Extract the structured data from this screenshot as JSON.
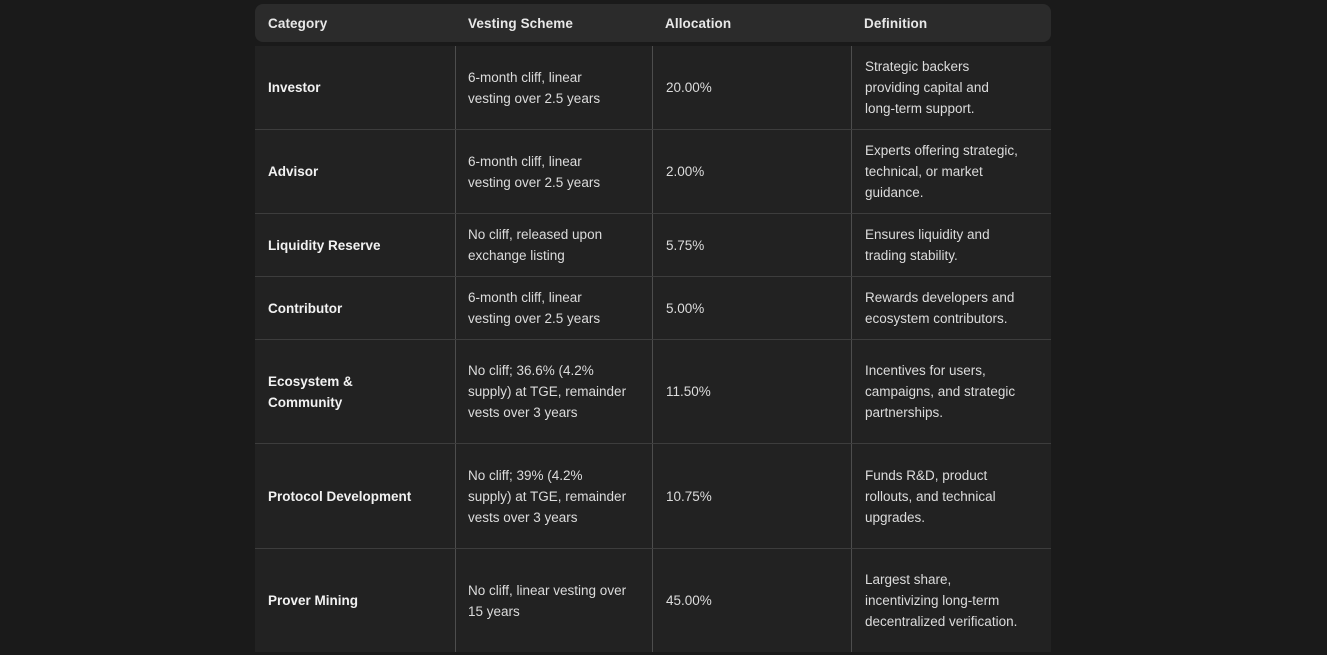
{
  "colors": {
    "page_background": "#1a1a1a",
    "header_background": "#2b2b2b",
    "body_background": "#222222",
    "row_separator": "#3d3d3d",
    "column_divider": "#4d4d4d",
    "header_text": "#e8e8e8",
    "category_text": "#f2f2f2",
    "cell_text": "#dcdcdc"
  },
  "table": {
    "columns": [
      {
        "label": "Category"
      },
      {
        "label": "Vesting Scheme"
      },
      {
        "label": "Allocation"
      },
      {
        "label": "Definition"
      }
    ],
    "rows": [
      {
        "category": "Investor",
        "vesting": "6-month cliff, linear vesting over 2.5 years",
        "allocation": "20.00%",
        "definition": "Strategic backers providing capital and long-term support."
      },
      {
        "category": "Advisor",
        "vesting": "6-month cliff, linear vesting over 2.5 years",
        "allocation": "2.00%",
        "definition": "Experts offering strategic, technical, or market guidance."
      },
      {
        "category": "Liquidity Reserve",
        "vesting": "No cliff, released upon exchange listing",
        "allocation": "5.75%",
        "definition": "Ensures liquidity and trading stability."
      },
      {
        "category": "Contributor",
        "vesting": "6-month cliff, linear vesting over 2.5 years",
        "allocation": "5.00%",
        "definition": "Rewards developers and ecosystem contributors."
      },
      {
        "category": "Ecosystem & Community",
        "vesting": "No cliff; 36.6% (4.2% supply) at TGE, remainder vests over 3 years",
        "allocation": "11.50%",
        "definition": "Incentives for users, campaigns, and strategic partnerships."
      },
      {
        "category": "Protocol Development",
        "vesting": "No cliff; 39% (4.2% supply) at TGE, remainder vests over 3 years",
        "allocation": "10.75%",
        "definition": "Funds R&D, product rollouts, and technical upgrades."
      },
      {
        "category": "Prover Mining",
        "vesting": "No cliff, linear vesting over 15 years",
        "allocation": "45.00%",
        "definition": "Largest share, incentivizing long-term decentralized verification."
      }
    ]
  }
}
